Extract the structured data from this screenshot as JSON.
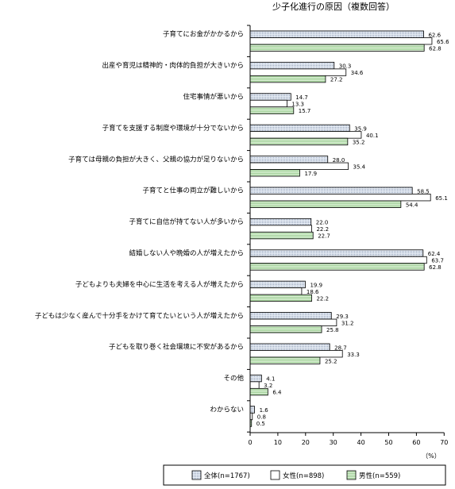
{
  "chart_data": {
    "type": "bar",
    "orientation": "horizontal",
    "title": "少子化進行の原因（複数回答）",
    "xlabel": "（%）",
    "xlim": [
      0,
      70
    ],
    "xticks": [
      0,
      10,
      20,
      30,
      40,
      50,
      60,
      70
    ],
    "legend_position": "bottom-right",
    "categories": [
      "子育てにお金がかかるから",
      "出産や育児は精神的・肉体的負担が大きいから",
      "住宅事情が悪いから",
      "子育てを支援する制度や環境が十分でないから",
      "子育ては母親の負担が大きく、父親の協力が足りないから",
      "子育てと仕事の両立が難しいから",
      "子育てに自信が持てない人が多いから",
      "結婚しない人や晩婚の人が増えたから",
      "子どもよりも夫婦を中心に生活を考える人が増えたから",
      "子どもは少なく産んで十分手をかけて育てたいという人が増えたから",
      "子どもを取り巻く社会環境に不安があるから",
      "その他",
      "わからない"
    ],
    "series": [
      {
        "name": "全体(n=1767)",
        "color": "#dfe6f0",
        "pattern": "dots",
        "values": [
          62.6,
          30.3,
          14.7,
          35.9,
          28.0,
          58.5,
          22.0,
          62.4,
          19.9,
          29.3,
          28.7,
          4.1,
          1.6
        ]
      },
      {
        "name": "女性(n=898)",
        "color": "#ffffff",
        "pattern": "none",
        "values": [
          65.6,
          34.6,
          13.3,
          40.1,
          35.4,
          65.1,
          22.2,
          63.7,
          18.6,
          31.2,
          33.3,
          3.2,
          0.8
        ]
      },
      {
        "name": "男性(n=559)",
        "color": "#d8efd4",
        "pattern": "lines",
        "values": [
          62.8,
          27.2,
          15.7,
          35.2,
          17.9,
          54.4,
          22.7,
          62.8,
          22.2,
          25.8,
          25.2,
          6.4,
          0.5
        ]
      }
    ]
  }
}
